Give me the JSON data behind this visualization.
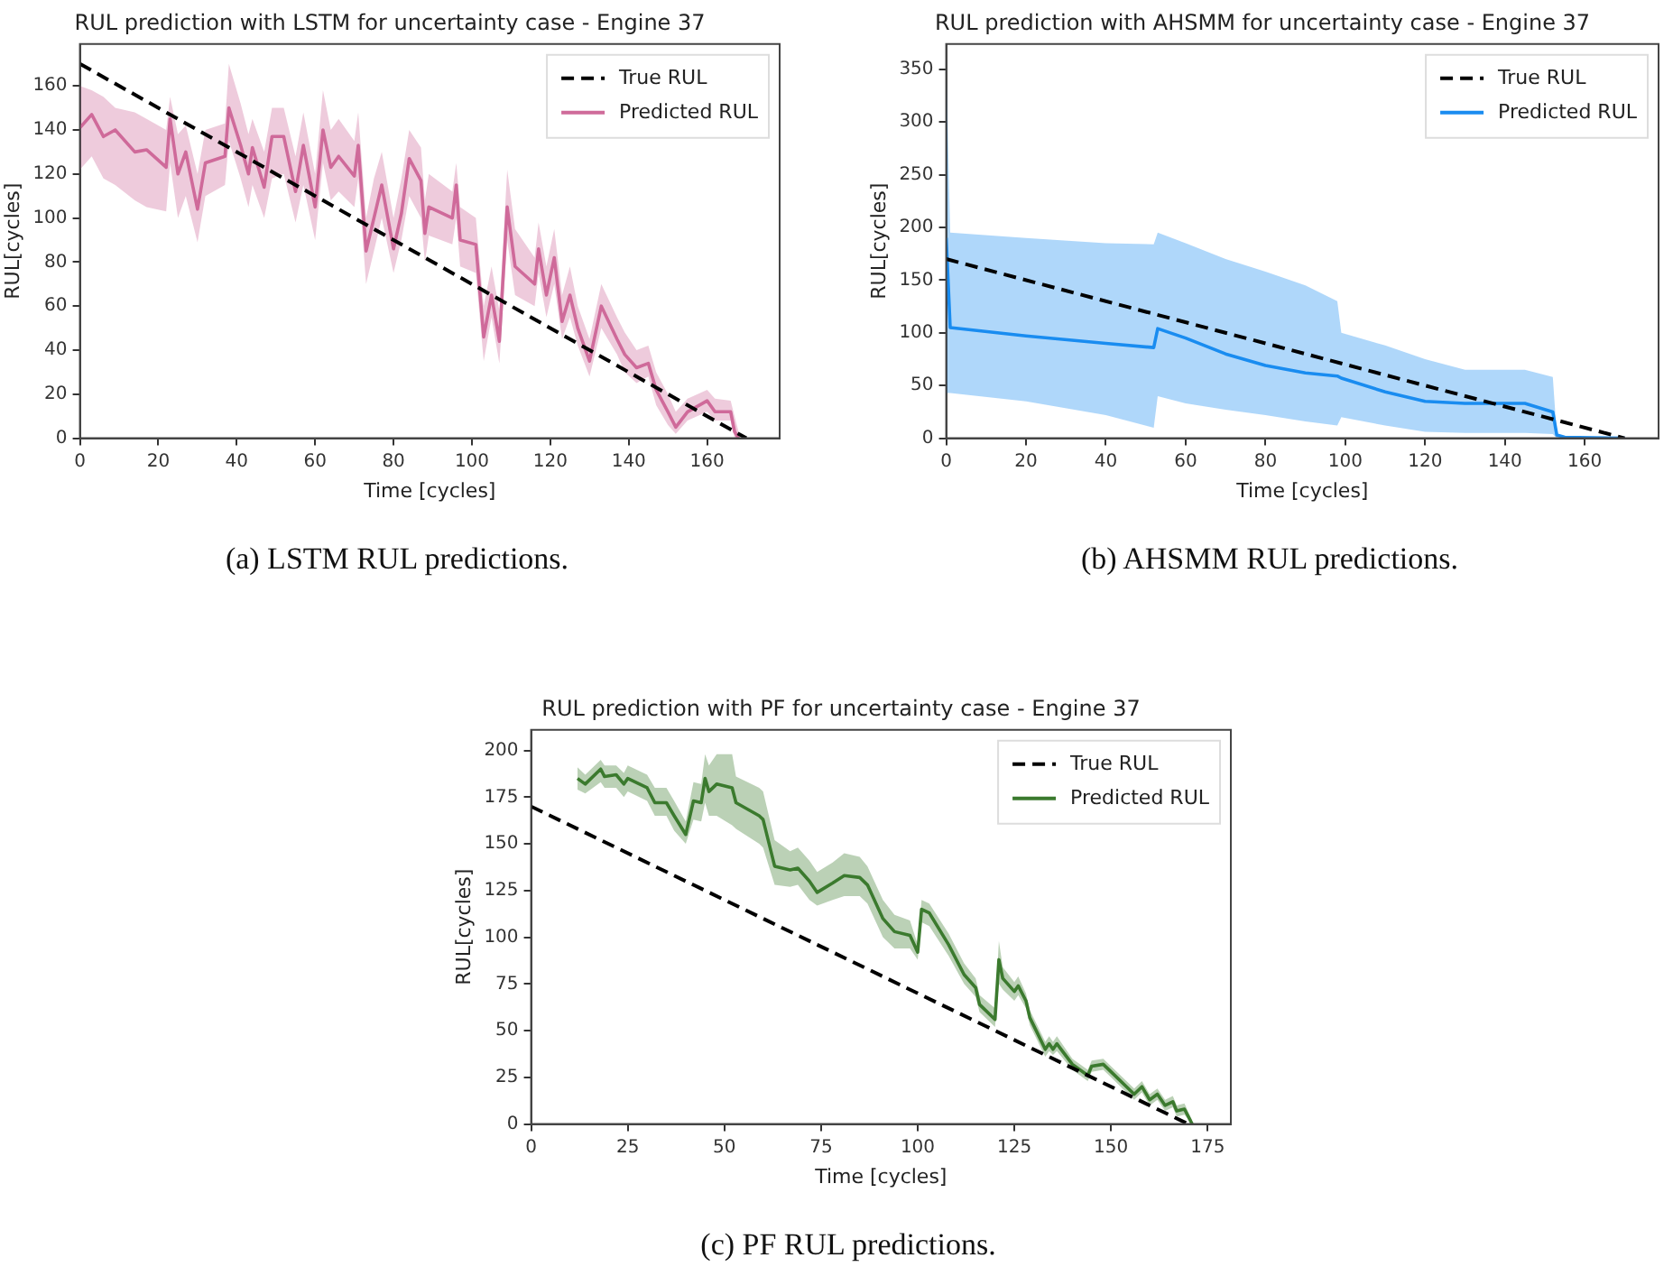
{
  "chart_data": [
    {
      "type": "line",
      "title": "RUL prediction with LSTM for uncertainty case - Engine 37",
      "xlabel": "Time [cycles]",
      "ylabel": "RUL[cycles]",
      "xlim": [
        0,
        178.5
      ],
      "xticks": [
        0,
        20,
        40,
        60,
        80,
        100,
        120,
        140,
        160
      ],
      "ylim": [
        0,
        179
      ],
      "yticks": [
        0,
        20,
        40,
        60,
        80,
        100,
        120,
        140,
        160
      ],
      "grid": false,
      "legend": "top right",
      "annotations": [
        "(a) LSTM RUL predictions."
      ],
      "series": [
        {
          "name": "True RUL",
          "color": "#000000",
          "line_style": "dashed",
          "x": [
            0,
            170
          ],
          "values": [
            170,
            0
          ]
        },
        {
          "name": "Predicted RUL",
          "color": "#cf6b9a",
          "line_style": "solid",
          "x": [
            0,
            3,
            6,
            9,
            14,
            17,
            22,
            23,
            25,
            27,
            30,
            32,
            37,
            38,
            41,
            43,
            44,
            47,
            49,
            52,
            55,
            57,
            60,
            62,
            64,
            66,
            70,
            71,
            73,
            75,
            77,
            80,
            82,
            84,
            87,
            88,
            89,
            95,
            96,
            97,
            101,
            103,
            105,
            107,
            109,
            111,
            116,
            117,
            119,
            121,
            123,
            125,
            127,
            130,
            133,
            137,
            139,
            142,
            145,
            147,
            150,
            152,
            155,
            160,
            162,
            166,
            167,
            168
          ],
          "values": [
            141,
            147,
            137,
            140,
            130,
            131,
            123,
            145,
            120,
            130,
            104,
            125,
            128,
            150,
            133,
            120,
            132,
            114,
            137,
            137,
            112,
            133,
            105,
            140,
            123,
            128,
            119,
            133,
            85,
            100,
            115,
            86,
            102,
            127,
            117,
            93,
            105,
            100,
            115,
            90,
            88,
            46,
            65,
            44,
            105,
            78,
            70,
            86,
            65,
            82,
            53,
            65,
            50,
            35,
            60,
            45,
            38,
            32,
            34,
            22,
            12,
            5,
            12,
            17,
            12,
            12,
            3,
            0
          ],
          "lower": [
            122,
            128,
            118,
            115,
            108,
            105,
            103,
            125,
            100,
            110,
            89,
            110,
            115,
            135,
            118,
            105,
            115,
            100,
            118,
            120,
            98,
            115,
            90,
            125,
            108,
            112,
            105,
            118,
            70,
            85,
            100,
            75,
            90,
            110,
            100,
            80,
            92,
            88,
            100,
            78,
            75,
            35,
            55,
            34,
            90,
            65,
            60,
            75,
            55,
            70,
            45,
            55,
            42,
            28,
            50,
            38,
            30,
            25,
            28,
            15,
            6,
            2,
            8,
            12,
            8,
            8,
            0,
            0
          ],
          "upper": [
            160,
            158,
            155,
            150,
            148,
            145,
            140,
            155,
            138,
            142,
            120,
            140,
            143,
            170,
            152,
            138,
            145,
            130,
            150,
            150,
            128,
            148,
            120,
            158,
            140,
            145,
            135,
            148,
            100,
            118,
            130,
            100,
            118,
            140,
            132,
            108,
            120,
            112,
            125,
            105,
            100,
            60,
            78,
            58,
            122,
            95,
            82,
            98,
            78,
            95,
            65,
            78,
            60,
            45,
            70,
            55,
            48,
            40,
            42,
            30,
            20,
            12,
            18,
            22,
            18,
            17,
            10,
            3
          ]
        }
      ]
    },
    {
      "type": "line",
      "title": "RUL prediction with AHSMM for uncertainty case - Engine 37",
      "xlabel": "Time [cycles]",
      "ylabel": "RUL[cycles]",
      "xlim": [
        0,
        178.5
      ],
      "xticks": [
        0,
        20,
        40,
        60,
        80,
        100,
        120,
        140,
        160
      ],
      "ylim": [
        0,
        374
      ],
      "yticks": [
        0,
        50,
        100,
        150,
        200,
        250,
        300,
        350
      ],
      "grid": false,
      "legend": "top right",
      "annotations": [
        "(b) AHSMM RUL predictions."
      ],
      "series": [
        {
          "name": "True RUL",
          "color": "#000000",
          "line_style": "dashed",
          "x": [
            0,
            170
          ],
          "values": [
            170,
            0
          ]
        },
        {
          "name": "Predicted RUL",
          "color": "#1a8cf0",
          "line_style": "solid",
          "x": [
            0,
            1,
            20,
            40,
            52,
            53,
            60,
            70,
            80,
            90,
            98,
            99,
            110,
            120,
            130,
            140,
            145,
            152,
            153,
            155,
            170
          ],
          "values": [
            190,
            105,
            97,
            90,
            86,
            104,
            95,
            80,
            69,
            62,
            59,
            57,
            44,
            35,
            33,
            33,
            33,
            25,
            3,
            1,
            0
          ],
          "lower": [
            43,
            43,
            35,
            22,
            10,
            40,
            33,
            27,
            22,
            16,
            12,
            20,
            12,
            6,
            5,
            5,
            5,
            4,
            0,
            0,
            0
          ],
          "upper": [
            356,
            195,
            190,
            185,
            184,
            195,
            185,
            170,
            158,
            145,
            130,
            100,
            88,
            75,
            65,
            65,
            65,
            58,
            3,
            1,
            0
          ]
        }
      ]
    },
    {
      "type": "line",
      "title": "RUL prediction with PF for uncertainty case - Engine 37",
      "xlabel": "Time [cycles]",
      "ylabel": "RUL[cycles]",
      "xlim": [
        0,
        181
      ],
      "xticks": [
        0,
        25,
        50,
        75,
        100,
        125,
        150,
        175
      ],
      "ylim": [
        0,
        211
      ],
      "yticks": [
        0,
        25,
        50,
        75,
        100,
        125,
        150,
        175,
        200
      ],
      "grid": false,
      "legend": "top right",
      "annotations": [
        "(c) PF RUL predictions."
      ],
      "series": [
        {
          "name": "True RUL",
          "color": "#000000",
          "line_style": "dashed",
          "x": [
            0,
            170
          ],
          "values": [
            170,
            0
          ]
        },
        {
          "name": "Predicted RUL",
          "color": "#3b7a2e",
          "line_style": "solid",
          "x": [
            12,
            14,
            18,
            19,
            22,
            24,
            25,
            30,
            32,
            35,
            37,
            40,
            42,
            44,
            45,
            46,
            48,
            52,
            53,
            59,
            60,
            63,
            67,
            69,
            72,
            74,
            78,
            81,
            85,
            87,
            91,
            94,
            98,
            100,
            101,
            103,
            108,
            112,
            115,
            116,
            120,
            121,
            122,
            125,
            126,
            128,
            129,
            133,
            134,
            135,
            136,
            140,
            144,
            145,
            148,
            150,
            154,
            156,
            158,
            160,
            162,
            164,
            166,
            167,
            169,
            171
          ],
          "values": [
            185,
            182,
            190,
            186,
            187,
            182,
            185,
            180,
            172,
            172,
            165,
            155,
            173,
            172,
            185,
            178,
            182,
            180,
            172,
            165,
            163,
            138,
            136,
            137,
            130,
            124,
            129,
            133,
            132,
            128,
            110,
            103,
            101,
            92,
            115,
            113,
            96,
            80,
            73,
            64,
            56,
            88,
            78,
            71,
            74,
            66,
            57,
            40,
            43,
            40,
            43,
            32,
            26,
            31,
            32,
            28,
            20,
            16,
            20,
            13,
            16,
            10,
            12,
            7,
            8,
            0
          ],
          "lower": [
            179,
            177,
            183,
            180,
            180,
            175,
            178,
            173,
            165,
            165,
            157,
            150,
            163,
            162,
            172,
            165,
            165,
            160,
            158,
            150,
            148,
            128,
            127,
            128,
            120,
            117,
            120,
            122,
            122,
            118,
            100,
            94,
            94,
            88,
            108,
            106,
            90,
            75,
            68,
            60,
            52,
            75,
            72,
            66,
            69,
            62,
            53,
            36,
            39,
            37,
            39,
            29,
            23,
            28,
            29,
            25,
            17,
            13,
            17,
            10,
            13,
            7,
            9,
            4,
            5,
            0
          ],
          "upper": [
            191,
            187,
            195,
            192,
            192,
            188,
            192,
            187,
            180,
            180,
            173,
            162,
            183,
            182,
            198,
            192,
            198,
            198,
            186,
            180,
            178,
            152,
            146,
            148,
            141,
            135,
            140,
            145,
            143,
            138,
            120,
            112,
            109,
            96,
            120,
            118,
            102,
            86,
            78,
            69,
            62,
            98,
            84,
            76,
            79,
            70,
            61,
            44,
            47,
            44,
            47,
            35,
            29,
            34,
            35,
            31,
            23,
            19,
            23,
            16,
            19,
            13,
            15,
            10,
            11,
            2
          ]
        }
      ]
    }
  ]
}
